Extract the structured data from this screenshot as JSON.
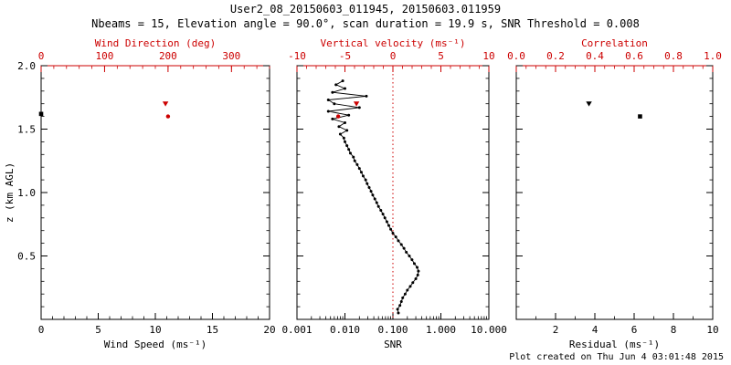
{
  "title": "User2_08_20150603_011945, 20150603.011959",
  "subtitle": "Nbeams = 15, Elevation angle = 90.0°, scan duration = 19.9 s, SNR Threshold = 0.008",
  "footer": "Plot created on Thu Jun  4 03:01:48 2015",
  "colors": {
    "axis": "#000000",
    "accent": "#cc0000",
    "background": "#ffffff"
  },
  "axes": {
    "ylabel": "z (km AGL)",
    "ylim": [
      0,
      2
    ],
    "yticks": [
      {
        "v": 0.5,
        "label": "0.5"
      },
      {
        "v": 1.0,
        "label": "1.0"
      },
      {
        "v": 1.5,
        "label": "1.5"
      },
      {
        "v": 2.0,
        "label": "2.0"
      }
    ],
    "y_minor_step": 0.1
  },
  "chart_data": [
    {
      "type": "scatter",
      "panel": "wind",
      "bottom_axis": {
        "label": "Wind Speed (ms⁻¹)",
        "scale": "linear",
        "range": [
          0,
          20
        ],
        "minor_step": 1,
        "color": "#000000",
        "ticks": [
          {
            "v": 0,
            "label": "0"
          },
          {
            "v": 5,
            "label": "5"
          },
          {
            "v": 10,
            "label": "10"
          },
          {
            "v": 15,
            "label": "15"
          },
          {
            "v": 20,
            "label": "20"
          }
        ]
      },
      "top_axis": {
        "label": "Wind Direction (deg)",
        "scale": "linear",
        "range": [
          0,
          360
        ],
        "minor_step": 20,
        "color": "#cc0000",
        "ticks": [
          {
            "v": 0,
            "label": "0"
          },
          {
            "v": 100,
            "label": "100"
          },
          {
            "v": 200,
            "label": "200"
          },
          {
            "v": 300,
            "label": "300"
          }
        ]
      },
      "series": [
        {
          "name": "wind-speed-points",
          "axis": "bottom",
          "color": "#000000",
          "marker": "square",
          "line": false,
          "points": [
            [
              0.0,
              1.62
            ]
          ]
        },
        {
          "name": "wind-direction-triangle",
          "axis": "top",
          "color": "#cc0000",
          "marker": "triangle-down",
          "line": false,
          "points": [
            [
              196,
              1.7
            ]
          ]
        },
        {
          "name": "wind-direction-dot",
          "axis": "top",
          "color": "#cc0000",
          "marker": "dot",
          "line": false,
          "points": [
            [
              200,
              1.6
            ]
          ]
        }
      ]
    },
    {
      "type": "line",
      "panel": "snr",
      "bottom_axis": {
        "label": "SNR",
        "scale": "log",
        "range": [
          0.001,
          10
        ],
        "color": "#000000",
        "ticks": [
          {
            "v": 0.001,
            "label": "0.001"
          },
          {
            "v": 0.01,
            "label": "0.010"
          },
          {
            "v": 0.1,
            "label": "0.100"
          },
          {
            "v": 1,
            "label": "1.000"
          },
          {
            "v": 10,
            "label": "10.000"
          }
        ]
      },
      "top_axis": {
        "label": "Vertical velocity (ms⁻¹)",
        "scale": "linear",
        "range": [
          -10,
          10
        ],
        "minor_step": 1,
        "color": "#cc0000",
        "ticks": [
          {
            "v": -10,
            "label": "-10"
          },
          {
            "v": -5,
            "label": "-5"
          },
          {
            "v": 0,
            "label": "0"
          },
          {
            "v": 5,
            "label": "5"
          },
          {
            "v": 10,
            "label": "10"
          }
        ]
      },
      "refline": {
        "axis": "top",
        "value": 0,
        "color": "#cc0000",
        "style": "dotted"
      },
      "series": [
        {
          "name": "snr-profile",
          "axis": "bottom",
          "color": "#000000",
          "marker": "dot-small",
          "line": true,
          "points": [
            [
              0.13,
              0.05
            ],
            [
              0.125,
              0.08
            ],
            [
              0.14,
              0.11
            ],
            [
              0.15,
              0.14
            ],
            [
              0.16,
              0.17
            ],
            [
              0.18,
              0.2
            ],
            [
              0.2,
              0.23
            ],
            [
              0.23,
              0.26
            ],
            [
              0.26,
              0.29
            ],
            [
              0.3,
              0.32
            ],
            [
              0.33,
              0.35
            ],
            [
              0.34,
              0.38
            ],
            [
              0.32,
              0.41
            ],
            [
              0.28,
              0.44
            ],
            [
              0.25,
              0.47
            ],
            [
              0.22,
              0.5
            ],
            [
              0.19,
              0.53
            ],
            [
              0.17,
              0.56
            ],
            [
              0.15,
              0.59
            ],
            [
              0.13,
              0.62
            ],
            [
              0.115,
              0.65
            ],
            [
              0.1,
              0.68
            ],
            [
              0.09,
              0.71
            ],
            [
              0.082,
              0.74
            ],
            [
              0.075,
              0.77
            ],
            [
              0.068,
              0.8
            ],
            [
              0.062,
              0.83
            ],
            [
              0.056,
              0.86
            ],
            [
              0.05,
              0.89
            ],
            [
              0.046,
              0.92
            ],
            [
              0.042,
              0.95
            ],
            [
              0.038,
              0.98
            ],
            [
              0.035,
              1.01
            ],
            [
              0.032,
              1.04
            ],
            [
              0.029,
              1.07
            ],
            [
              0.027,
              1.1
            ],
            [
              0.024,
              1.13
            ],
            [
              0.022,
              1.16
            ],
            [
              0.02,
              1.19
            ],
            [
              0.018,
              1.22
            ],
            [
              0.016,
              1.25
            ],
            [
              0.015,
              1.28
            ],
            [
              0.013,
              1.31
            ],
            [
              0.012,
              1.34
            ],
            [
              0.011,
              1.37
            ],
            [
              0.01,
              1.4
            ],
            [
              0.0095,
              1.43
            ],
            [
              0.008,
              1.46
            ],
            [
              0.011,
              1.49
            ],
            [
              0.0075,
              1.52
            ],
            [
              0.01,
              1.55
            ],
            [
              0.0055,
              1.58
            ],
            [
              0.012,
              1.61
            ],
            [
              0.0045,
              1.64
            ],
            [
              0.02,
              1.67
            ],
            [
              0.006,
              1.7
            ],
            [
              0.0045,
              1.73
            ],
            [
              0.028,
              1.76
            ],
            [
              0.0055,
              1.79
            ],
            [
              0.01,
              1.82
            ],
            [
              0.0065,
              1.85
            ],
            [
              0.009,
              1.88
            ]
          ]
        },
        {
          "name": "vertical-velocity-triangle",
          "axis": "top",
          "color": "#cc0000",
          "marker": "triangle-down",
          "line": false,
          "points": [
            [
              -3.8,
              1.7
            ]
          ]
        },
        {
          "name": "vertical-velocity-dot",
          "axis": "top",
          "color": "#cc0000",
          "marker": "dot",
          "line": false,
          "points": [
            [
              -5.7,
              1.6
            ]
          ]
        }
      ]
    },
    {
      "type": "scatter",
      "panel": "residual",
      "bottom_axis": {
        "label": "Residual (ms⁻¹)",
        "scale": "linear",
        "range": [
          0,
          10
        ],
        "minor_step": 1,
        "color": "#000000",
        "ticks": [
          {
            "v": 2,
            "label": "2"
          },
          {
            "v": 4,
            "label": "4"
          },
          {
            "v": 6,
            "label": "6"
          },
          {
            "v": 8,
            "label": "8"
          },
          {
            "v": 10,
            "label": "10"
          }
        ]
      },
      "top_axis": {
        "label": "Correlation",
        "scale": "linear",
        "range": [
          0,
          1
        ],
        "minor_step": 0.05,
        "color": "#cc0000",
        "ticks": [
          {
            "v": 0.0,
            "label": "0.0"
          },
          {
            "v": 0.2,
            "label": "0.2"
          },
          {
            "v": 0.4,
            "label": "0.4"
          },
          {
            "v": 0.6,
            "label": "0.6"
          },
          {
            "v": 0.8,
            "label": "0.8"
          },
          {
            "v": 1.0,
            "label": "1.0"
          }
        ]
      },
      "series": [
        {
          "name": "residual-triangle",
          "axis": "bottom",
          "color": "#000000",
          "marker": "triangle-down",
          "line": false,
          "points": [
            [
              3.7,
              1.7
            ]
          ]
        },
        {
          "name": "residual-square",
          "axis": "bottom",
          "color": "#000000",
          "marker": "square",
          "line": false,
          "points": [
            [
              6.3,
              1.6
            ]
          ]
        }
      ]
    }
  ]
}
